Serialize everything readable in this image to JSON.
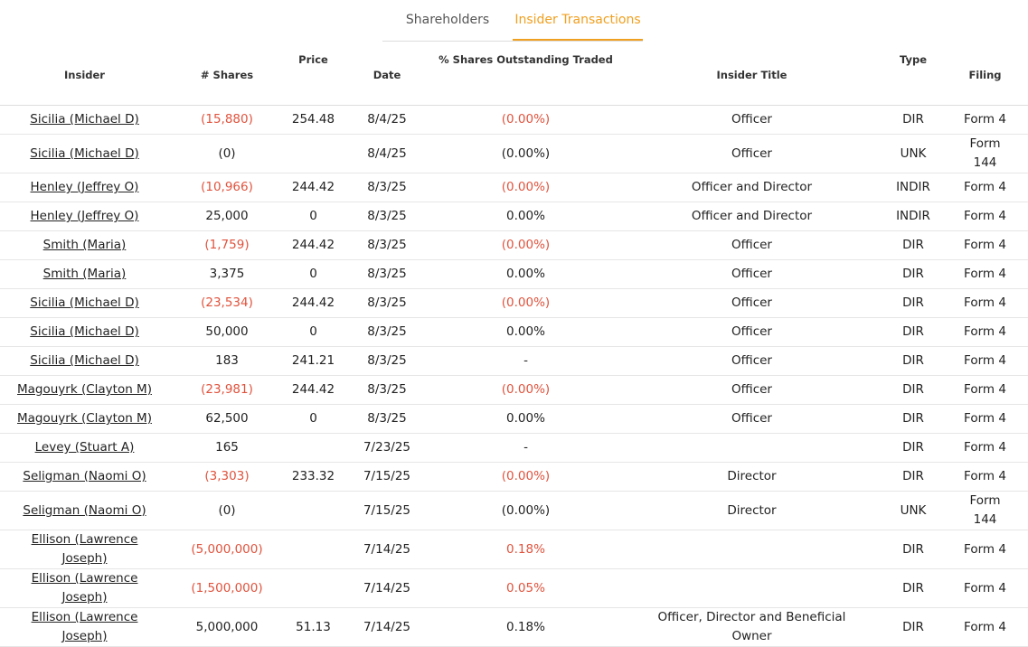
{
  "tabs": [
    "Shareholders",
    "Insider Transactions"
  ],
  "active_tab": 1,
  "active_color": "#f0a020",
  "table": {
    "headers": [
      "Insider",
      "# Shares",
      "Price",
      "Date",
      "% Shares Outstanding Traded",
      "Insider Title",
      "Type",
      "Filing"
    ],
    "rows": [
      {
        "cells": [
          "Sicilia (Michael D)",
          "(15,880)",
          "254.48",
          "8/4/25",
          "(0.00%)",
          "Officer",
          "DIR",
          "Form 4"
        ],
        "color": "#e0533d"
      },
      {
        "cells": [
          "Sicilia (Michael D)",
          "(0)",
          "",
          "8/4/25",
          "(0.00%)",
          "Officer",
          "UNK",
          "Form 144"
        ],
        "color": "#222222"
      },
      {
        "cells": [
          "Henley (Jeffrey O)",
          "(10,966)",
          "244.42",
          "8/3/25",
          "(0.00%)",
          "Officer and Director",
          "INDIR",
          "Form 4"
        ],
        "color": "#e0533d"
      },
      {
        "cells": [
          "Henley (Jeffrey O)",
          "25,000",
          "0",
          "8/3/25",
          "0.00%",
          "Officer and Director",
          "INDIR",
          "Form 4"
        ],
        "color": "#222222"
      },
      {
        "cells": [
          "Smith (Maria)",
          "(1,759)",
          "244.42",
          "8/3/25",
          "(0.00%)",
          "Officer",
          "DIR",
          "Form 4"
        ],
        "color": "#e0533d"
      },
      {
        "cells": [
          "Smith (Maria)",
          "3,375",
          "0",
          "8/3/25",
          "0.00%",
          "Officer",
          "DIR",
          "Form 4"
        ],
        "color": "#222222"
      },
      {
        "cells": [
          "Sicilia (Michael D)",
          "(23,534)",
          "244.42",
          "8/3/25",
          "(0.00%)",
          "Officer",
          "DIR",
          "Form 4"
        ],
        "color": "#e0533d"
      },
      {
        "cells": [
          "Sicilia (Michael D)",
          "50,000",
          "0",
          "8/3/25",
          "0.00%",
          "Officer",
          "DIR",
          "Form 4"
        ],
        "color": "#222222"
      },
      {
        "cells": [
          "Sicilia (Michael D)",
          "183",
          "241.21",
          "8/3/25",
          "-",
          "Officer",
          "DIR",
          "Form 4"
        ],
        "color": "#222222"
      },
      {
        "cells": [
          "Magouyrk (Clayton M)",
          "(23,981)",
          "244.42",
          "8/3/25",
          "(0.00%)",
          "Officer",
          "DIR",
          "Form 4"
        ],
        "color": "#e0533d"
      },
      {
        "cells": [
          "Magouyrk (Clayton M)",
          "62,500",
          "0",
          "8/3/25",
          "0.00%",
          "Officer",
          "DIR",
          "Form 4"
        ],
        "color": "#222222"
      },
      {
        "cells": [
          "Levey (Stuart A)",
          "165",
          "",
          "7/23/25",
          "-",
          "",
          "DIR",
          "Form 4"
        ],
        "color": "#222222"
      },
      {
        "cells": [
          "Seligman (Naomi O)",
          "(3,303)",
          "233.32",
          "7/15/25",
          "(0.00%)",
          "Director",
          "DIR",
          "Form 4"
        ],
        "color": "#e0533d"
      },
      {
        "cells": [
          "Seligman (Naomi O)",
          "(0)",
          "",
          "7/15/25",
          "(0.00%)",
          "Director",
          "UNK",
          "Form 144"
        ],
        "color": "#222222"
      },
      {
        "cells": [
          "Ellison (Lawrence Joseph)",
          "(5,000,000)",
          "",
          "7/14/25",
          "0.18%",
          "",
          "DIR",
          "Form 4"
        ],
        "color": "#e0533d"
      },
      {
        "cells": [
          "Ellison (Lawrence Joseph)",
          "(1,500,000)",
          "",
          "7/14/25",
          "0.05%",
          "",
          "DIR",
          "Form 4"
        ],
        "color": "#e0533d"
      },
      {
        "cells": [
          "Ellison (Lawrence Joseph)",
          "5,000,000",
          "51.13",
          "7/14/25",
          "0.18%",
          "Officer, Director and Beneficial Owner",
          "DIR",
          "Form 4"
        ],
        "color": "#222222"
      }
    ]
  }
}
